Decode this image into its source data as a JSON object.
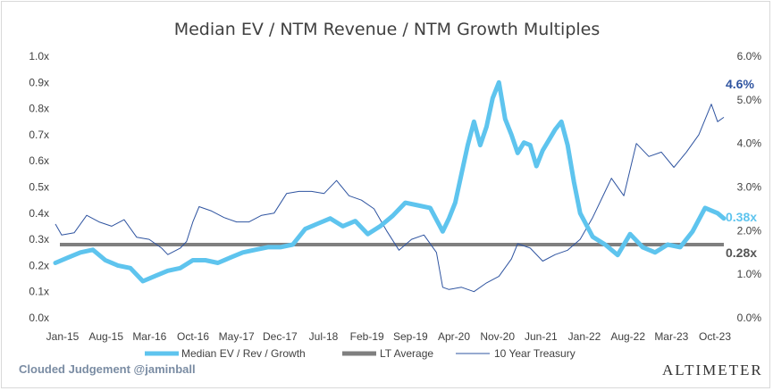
{
  "chart_data": {
    "type": "line",
    "title": "Median EV / NTM Revenue / NTM Growth Multiples",
    "x_tick_labels": [
      "Jan-15",
      "Aug-15",
      "Mar-16",
      "Oct-16",
      "May-17",
      "Dec-17",
      "Jul-18",
      "Feb-19",
      "Sep-19",
      "Apr-20",
      "Nov-20",
      "Jun-21",
      "Jan-22",
      "Aug-22",
      "Mar-23",
      "Oct-23"
    ],
    "x_range": [
      "2015-01",
      "2023-12"
    ],
    "y_left": {
      "ylim": [
        0,
        1.0
      ],
      "ticks": [
        "0.0x",
        "0.1x",
        "0.2x",
        "0.3x",
        "0.4x",
        "0.5x",
        "0.6x",
        "0.7x",
        "0.8x",
        "0.9x",
        "1.0x"
      ]
    },
    "y_right": {
      "ylim": [
        0,
        6.0
      ],
      "ticks": [
        "0.0%",
        "1.0%",
        "2.0%",
        "3.0%",
        "4.0%",
        "5.0%",
        "6.0%"
      ]
    },
    "grid": false,
    "legend_position": "bottom",
    "series": [
      {
        "name": "Median EV / Rev / Growth",
        "axis": "left",
        "color": "#5ec4ee",
        "style": "thick",
        "end_label": "0.38x",
        "x": [
          "2015-01",
          "2015-03",
          "2015-05",
          "2015-07",
          "2015-09",
          "2015-11",
          "2016-01",
          "2016-03",
          "2016-05",
          "2016-07",
          "2016-09",
          "2016-11",
          "2017-01",
          "2017-03",
          "2017-05",
          "2017-07",
          "2017-09",
          "2017-11",
          "2018-01",
          "2018-03",
          "2018-05",
          "2018-07",
          "2018-09",
          "2018-11",
          "2019-01",
          "2019-03",
          "2019-05",
          "2019-07",
          "2019-09",
          "2019-11",
          "2020-01",
          "2020-03",
          "2020-04",
          "2020-05",
          "2020-06",
          "2020-07",
          "2020-08",
          "2020-09",
          "2020-10",
          "2020-11",
          "2020-12",
          "2021-01",
          "2021-02",
          "2021-03",
          "2021-04",
          "2021-05",
          "2021-06",
          "2021-07",
          "2021-08",
          "2021-09",
          "2021-10",
          "2021-11",
          "2021-12",
          "2022-01",
          "2022-03",
          "2022-05",
          "2022-07",
          "2022-09",
          "2022-11",
          "2023-01",
          "2023-03",
          "2023-05",
          "2023-07",
          "2023-09",
          "2023-11",
          "2023-12"
        ],
        "values": [
          0.21,
          0.23,
          0.25,
          0.26,
          0.22,
          0.2,
          0.19,
          0.14,
          0.16,
          0.18,
          0.19,
          0.22,
          0.22,
          0.21,
          0.23,
          0.25,
          0.26,
          0.27,
          0.27,
          0.28,
          0.34,
          0.36,
          0.38,
          0.35,
          0.37,
          0.32,
          0.35,
          0.39,
          0.44,
          0.43,
          0.42,
          0.33,
          0.38,
          0.44,
          0.55,
          0.66,
          0.75,
          0.66,
          0.73,
          0.84,
          0.9,
          0.76,
          0.7,
          0.63,
          0.67,
          0.66,
          0.58,
          0.64,
          0.68,
          0.72,
          0.75,
          0.66,
          0.52,
          0.4,
          0.31,
          0.28,
          0.24,
          0.32,
          0.27,
          0.25,
          0.28,
          0.27,
          0.33,
          0.42,
          0.4,
          0.38
        ]
      },
      {
        "name": "LT Average",
        "axis": "left",
        "color": "#7f7f7f",
        "style": "flat",
        "end_label": "0.28x",
        "value": 0.28
      },
      {
        "name": "10 Year Treasury",
        "axis": "right",
        "color": "#2f54a0",
        "style": "thin",
        "end_label": "4.6%",
        "x": [
          "2015-01",
          "2015-02",
          "2015-04",
          "2015-06",
          "2015-08",
          "2015-10",
          "2015-12",
          "2016-02",
          "2016-04",
          "2016-06",
          "2016-07",
          "2016-09",
          "2016-10",
          "2016-11",
          "2016-12",
          "2017-02",
          "2017-04",
          "2017-06",
          "2017-08",
          "2017-10",
          "2017-12",
          "2018-02",
          "2018-04",
          "2018-06",
          "2018-08",
          "2018-10",
          "2018-12",
          "2019-02",
          "2019-04",
          "2019-06",
          "2019-08",
          "2019-10",
          "2019-12",
          "2020-02",
          "2020-03",
          "2020-04",
          "2020-06",
          "2020-08",
          "2020-10",
          "2020-12",
          "2021-02",
          "2021-03",
          "2021-05",
          "2021-07",
          "2021-09",
          "2021-11",
          "2022-01",
          "2022-03",
          "2022-05",
          "2022-06",
          "2022-08",
          "2022-10",
          "2022-12",
          "2023-02",
          "2023-04",
          "2023-06",
          "2023-08",
          "2023-10",
          "2023-11",
          "2023-12"
        ],
        "values": [
          2.15,
          1.9,
          1.95,
          2.35,
          2.2,
          2.1,
          2.25,
          1.85,
          1.8,
          1.6,
          1.45,
          1.6,
          1.75,
          2.2,
          2.55,
          2.45,
          2.3,
          2.2,
          2.2,
          2.35,
          2.4,
          2.85,
          2.9,
          2.9,
          2.85,
          3.15,
          2.8,
          2.7,
          2.5,
          2.0,
          1.55,
          1.8,
          1.9,
          1.5,
          0.7,
          0.65,
          0.7,
          0.6,
          0.8,
          0.95,
          1.35,
          1.7,
          1.6,
          1.3,
          1.45,
          1.55,
          1.8,
          2.3,
          2.9,
          3.2,
          2.8,
          4.0,
          3.7,
          3.8,
          3.45,
          3.8,
          4.2,
          4.9,
          4.5,
          4.6
        ]
      }
    ]
  },
  "footer": {
    "credit": "Clouded Judgement @jaminball",
    "brand": "Altimeter"
  }
}
